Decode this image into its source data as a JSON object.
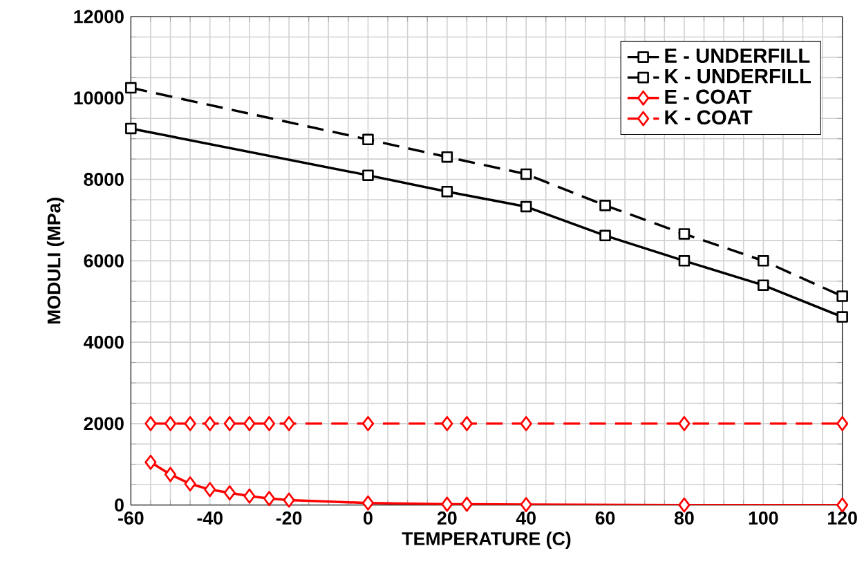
{
  "chart_data": {
    "type": "line",
    "xlabel": "TEMPERATURE  (C)",
    "ylabel": "MODULI  (MPa)",
    "xlim": [
      -60,
      120
    ],
    "xticks": [
      -60,
      -40,
      -20,
      0,
      20,
      40,
      60,
      80,
      100,
      120
    ],
    "ylim": [
      0,
      12000
    ],
    "yticks": [
      0,
      2000,
      4000,
      6000,
      8000,
      10000,
      12000
    ],
    "grid": true,
    "legend": "top right",
    "series": [
      {
        "name": "E - UNDERFILL",
        "color": "#000000",
        "marker": "square",
        "line_style": "solid",
        "x": [
          -60,
          0,
          20,
          40,
          60,
          80,
          100,
          120
        ],
        "values": [
          9250,
          8100,
          7700,
          7330,
          6620,
          6000,
          5400,
          4620
        ]
      },
      {
        "name": "K - UNDERFILL",
        "color": "#000000",
        "marker": "square",
        "line_style": "dashed",
        "x": [
          -60,
          0,
          20,
          40,
          60,
          80,
          100,
          120
        ],
        "values": [
          10250,
          8980,
          8550,
          8130,
          7360,
          6660,
          6000,
          5130
        ]
      },
      {
        "name": "E - COAT",
        "color": "#ff0000",
        "marker": "diamond",
        "line_style": "solid",
        "x": [
          -55,
          -50,
          -45,
          -40,
          -35,
          -30,
          -25,
          -20,
          0,
          20,
          25,
          40,
          80,
          120
        ],
        "values": [
          1050,
          750,
          520,
          380,
          300,
          220,
          160,
          120,
          50,
          20,
          20,
          10,
          0,
          0
        ]
      },
      {
        "name": "K - COAT",
        "color": "#ff0000",
        "marker": "diamond",
        "line_style": "dashed",
        "x": [
          -55,
          -50,
          -45,
          -40,
          -35,
          -30,
          -25,
          -20,
          0,
          20,
          25,
          40,
          80,
          120
        ],
        "values": [
          2000,
          2000,
          2000,
          2000,
          2000,
          2000,
          2000,
          2000,
          2000,
          2000,
          2000,
          2000,
          2000,
          2000
        ]
      }
    ]
  }
}
